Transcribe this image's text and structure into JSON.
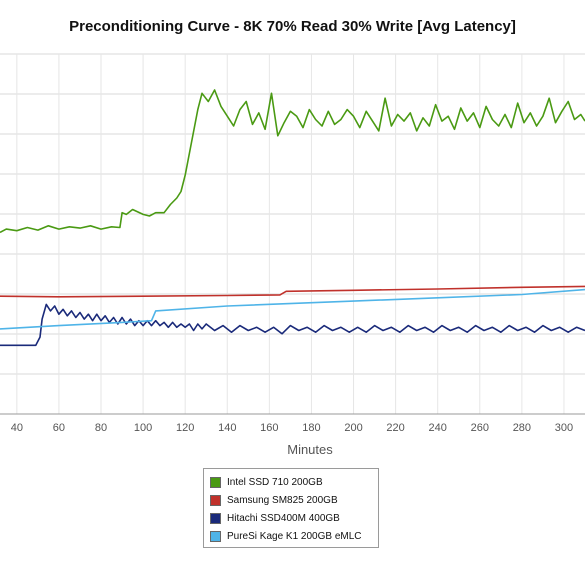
{
  "chart_data": {
    "type": "line",
    "title": "Preconditioning Curve - 8K 70% Read 30% Write [Avg Latency]",
    "xlabel": "Minutes",
    "ylabel": "",
    "xlim": [
      32,
      310
    ],
    "ylim": [
      0,
      110
    ],
    "x_ticks": [
      40,
      60,
      80,
      100,
      120,
      140,
      160,
      180,
      200,
      220,
      240,
      260,
      280,
      300
    ],
    "grid": true,
    "legend_position": "bottom-center",
    "series": [
      {
        "name": "Intel SSD 710 200GB",
        "color": "#4a9a13",
        "x": [
          32,
          35,
          40,
          45,
          50,
          55,
          60,
          65,
          70,
          75,
          80,
          85,
          89,
          90,
          92,
          95,
          100,
          103,
          106,
          110,
          113,
          116,
          118,
          120,
          123,
          126,
          128,
          131,
          134,
          137,
          140,
          143,
          146,
          149,
          152,
          155,
          158,
          161,
          164,
          167,
          170,
          173,
          176,
          179,
          182,
          185,
          188,
          191,
          194,
          197,
          200,
          203,
          206,
          209,
          212,
          215,
          218,
          221,
          224,
          227,
          230,
          233,
          236,
          239,
          242,
          245,
          248,
          251,
          254,
          257,
          260,
          263,
          266,
          269,
          272,
          275,
          278,
          281,
          284,
          287,
          290,
          293,
          296,
          299,
          302,
          305,
          308,
          310
        ],
        "values": [
          55.5,
          56.5,
          56.0,
          57.0,
          56.2,
          57.5,
          56.5,
          57.2,
          56.8,
          57.5,
          56.5,
          57.2,
          57.0,
          61.5,
          61.0,
          62.5,
          61.0,
          60.5,
          61.5,
          61.5,
          64.0,
          66.0,
          68.0,
          73.0,
          83.0,
          93.0,
          98.0,
          95.5,
          99.0,
          94.0,
          91.0,
          88.0,
          93.0,
          95.5,
          88.5,
          92.0,
          87.0,
          98.0,
          85.0,
          89.0,
          92.5,
          91.0,
          87.5,
          93.0,
          90.0,
          88.0,
          92.5,
          88.5,
          90.0,
          93.0,
          91.0,
          87.5,
          92.5,
          89.5,
          86.5,
          96.5,
          88.0,
          91.5,
          89.5,
          92.0,
          86.5,
          90.5,
          88.0,
          94.5,
          89.5,
          91.0,
          87.0,
          93.5,
          89.5,
          92.0,
          87.5,
          94.0,
          90.0,
          88.0,
          91.5,
          87.5,
          95.0,
          89.0,
          92.0,
          88.0,
          91.0,
          96.5,
          89.0,
          92.5,
          95.5,
          90.0,
          91.5,
          89.5
        ]
      },
      {
        "name": "Samsung SM825 200GB",
        "color": "#c0312b",
        "x": [
          32,
          60,
          100,
          140,
          165,
          168,
          200,
          240,
          280,
          310
        ],
        "values": [
          36.0,
          35.8,
          36.0,
          36.2,
          36.4,
          37.5,
          37.8,
          38.2,
          38.7,
          39.0
        ]
      },
      {
        "name": "Hitachi SSD400M 400GB",
        "color": "#1a2a7a",
        "x": [
          32,
          40,
          45,
          49,
          51,
          52,
          54,
          56,
          58,
          60,
          62,
          64,
          66,
          68,
          70,
          72,
          74,
          76,
          78,
          80,
          82,
          84,
          86,
          88,
          90,
          92,
          94,
          96,
          98,
          100,
          102,
          104,
          106,
          108,
          110,
          112,
          114,
          116,
          118,
          120,
          122,
          124,
          126,
          128,
          130,
          134,
          138,
          142,
          146,
          150,
          154,
          158,
          162,
          166,
          170,
          174,
          178,
          182,
          186,
          190,
          194,
          198,
          202,
          206,
          210,
          214,
          218,
          222,
          226,
          230,
          234,
          238,
          242,
          246,
          250,
          254,
          258,
          262,
          266,
          270,
          274,
          278,
          282,
          286,
          290,
          294,
          298,
          302,
          306,
          310
        ],
        "values": [
          21.0,
          21.0,
          21.0,
          21.0,
          23.5,
          29.0,
          33.5,
          31.5,
          33.0,
          30.5,
          32.0,
          30.0,
          31.5,
          29.5,
          31.0,
          29.0,
          30.5,
          28.5,
          30.5,
          28.5,
          30.0,
          28.0,
          29.5,
          27.5,
          29.5,
          27.5,
          29.0,
          27.0,
          28.5,
          27.0,
          28.5,
          27.0,
          28.5,
          27.0,
          28.0,
          26.5,
          28.0,
          26.5,
          27.5,
          26.5,
          27.5,
          25.5,
          27.5,
          26.0,
          27.5,
          25.5,
          27.0,
          25.0,
          27.0,
          25.5,
          26.5,
          25.0,
          26.5,
          24.5,
          27.0,
          25.5,
          26.5,
          25.0,
          27.0,
          25.5,
          26.5,
          25.0,
          26.5,
          25.0,
          27.0,
          25.5,
          26.5,
          25.0,
          27.0,
          25.5,
          26.5,
          25.0,
          27.0,
          25.5,
          26.5,
          25.0,
          27.0,
          25.5,
          26.5,
          25.0,
          27.0,
          25.5,
          26.5,
          25.0,
          27.0,
          25.5,
          26.5,
          25.0,
          26.5,
          25.5
        ]
      },
      {
        "name": "PureSi Kage K1 200GB eMLC",
        "color": "#4fb4e8",
        "x": [
          32,
          60,
          90,
          104,
          106,
          140,
          200,
          240,
          280,
          310
        ],
        "values": [
          26.0,
          27.0,
          28.0,
          28.5,
          31.5,
          33.0,
          34.5,
          35.5,
          36.5,
          38.0
        ]
      }
    ]
  }
}
